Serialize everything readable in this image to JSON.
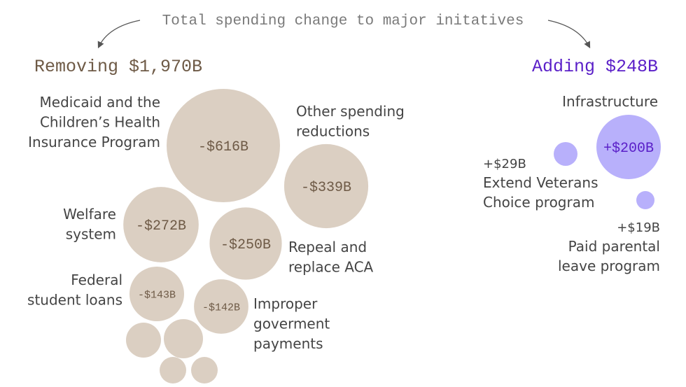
{
  "chart_data": {
    "type": "bubble",
    "title": "Total spending change to major initatives",
    "groups": [
      {
        "name": "removing",
        "heading": "Removing $1,970B",
        "color": "#dbcfc2",
        "heading_color": "#6e5a46",
        "value_color": "#6e5a46",
        "items": [
          {
            "label": [
              "Medicaid and the",
              "Children’s Health",
              "Insurance Program"
            ],
            "value": -616,
            "value_label": "-$616B"
          },
          {
            "label": [
              "Other spending",
              "reductions"
            ],
            "value": -339,
            "value_label": "-$339B"
          },
          {
            "label": [
              "Welfare",
              "system"
            ],
            "value": -272,
            "value_label": "-$272B"
          },
          {
            "label": [
              "Repeal and",
              "replace ACA"
            ],
            "value": -250,
            "value_label": "-$250B"
          },
          {
            "label": [
              "Federal",
              "student loans"
            ],
            "value": -143,
            "value_label": "-$143B"
          },
          {
            "label": [
              "Improper",
              "goverment",
              "payments"
            ],
            "value": -142,
            "value_label": "-$142B"
          },
          {
            "label": [],
            "value": -60,
            "value_label": ""
          },
          {
            "label": [],
            "value": -70,
            "value_label": ""
          },
          {
            "label": [],
            "value": -35,
            "value_label": ""
          },
          {
            "label": [],
            "value": -35,
            "value_label": ""
          }
        ]
      },
      {
        "name": "adding",
        "heading": "Adding $248B",
        "color": "#b8b0fb",
        "heading_color": "#5a1fc8",
        "value_color": "#5a1fc8",
        "items": [
          {
            "label": [
              "Infrastructure"
            ],
            "value": 200,
            "value_label": "+$200B"
          },
          {
            "label": [
              "Extend Veterans",
              "Choice program"
            ],
            "value": 29,
            "value_label": "+$29B"
          },
          {
            "label": [
              "Paid parental",
              "leave program"
            ],
            "value": 19,
            "value_label": "+$19B"
          }
        ]
      }
    ]
  }
}
